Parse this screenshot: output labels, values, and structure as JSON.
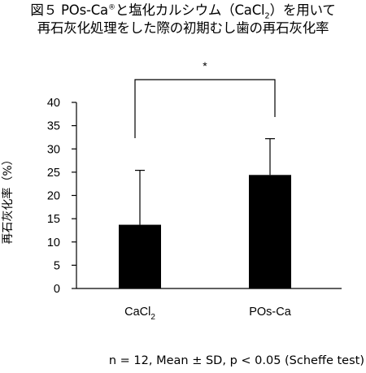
{
  "title": {
    "line1_prefix": "図５ POs-Ca",
    "line1_sup": "®",
    "line1_mid": "と塩化カルシウム（CaCl",
    "line1_sub": "2",
    "line1_suffix": "）を用いて",
    "line2": "再石灰化処理をした際の初期むし歯の再石灰化率"
  },
  "footnote": "n = 12, Mean ± SD,  p < 0.05 (Scheffe test)",
  "significance_marker": "*",
  "chart_data": {
    "type": "bar",
    "categories": [
      {
        "label": "CaCl",
        "sub": "2"
      },
      {
        "label": "POs-Ca",
        "sub": ""
      }
    ],
    "series": [
      {
        "values": [
          13.7,
          24.4
        ],
        "error": [
          11.7,
          7.8
        ]
      }
    ],
    "ylabel": "再石灰化率（%）",
    "xlabel": "",
    "ylim": [
      0,
      40
    ],
    "yticks": [
      0,
      5,
      10,
      15,
      20,
      25,
      30,
      35,
      40
    ],
    "bar_color": "#000000",
    "grid": false
  }
}
